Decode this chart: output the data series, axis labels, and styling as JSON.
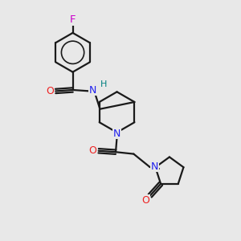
{
  "bg": "#e8e8e8",
  "bc": "#1a1a1a",
  "NC": "#2020ee",
  "OC": "#ee2020",
  "FC": "#cc00cc",
  "HC": "#008080",
  "lw": 1.6,
  "fs": 8.5,
  "xlim": [
    0,
    10
  ],
  "ylim": [
    0,
    10
  ]
}
